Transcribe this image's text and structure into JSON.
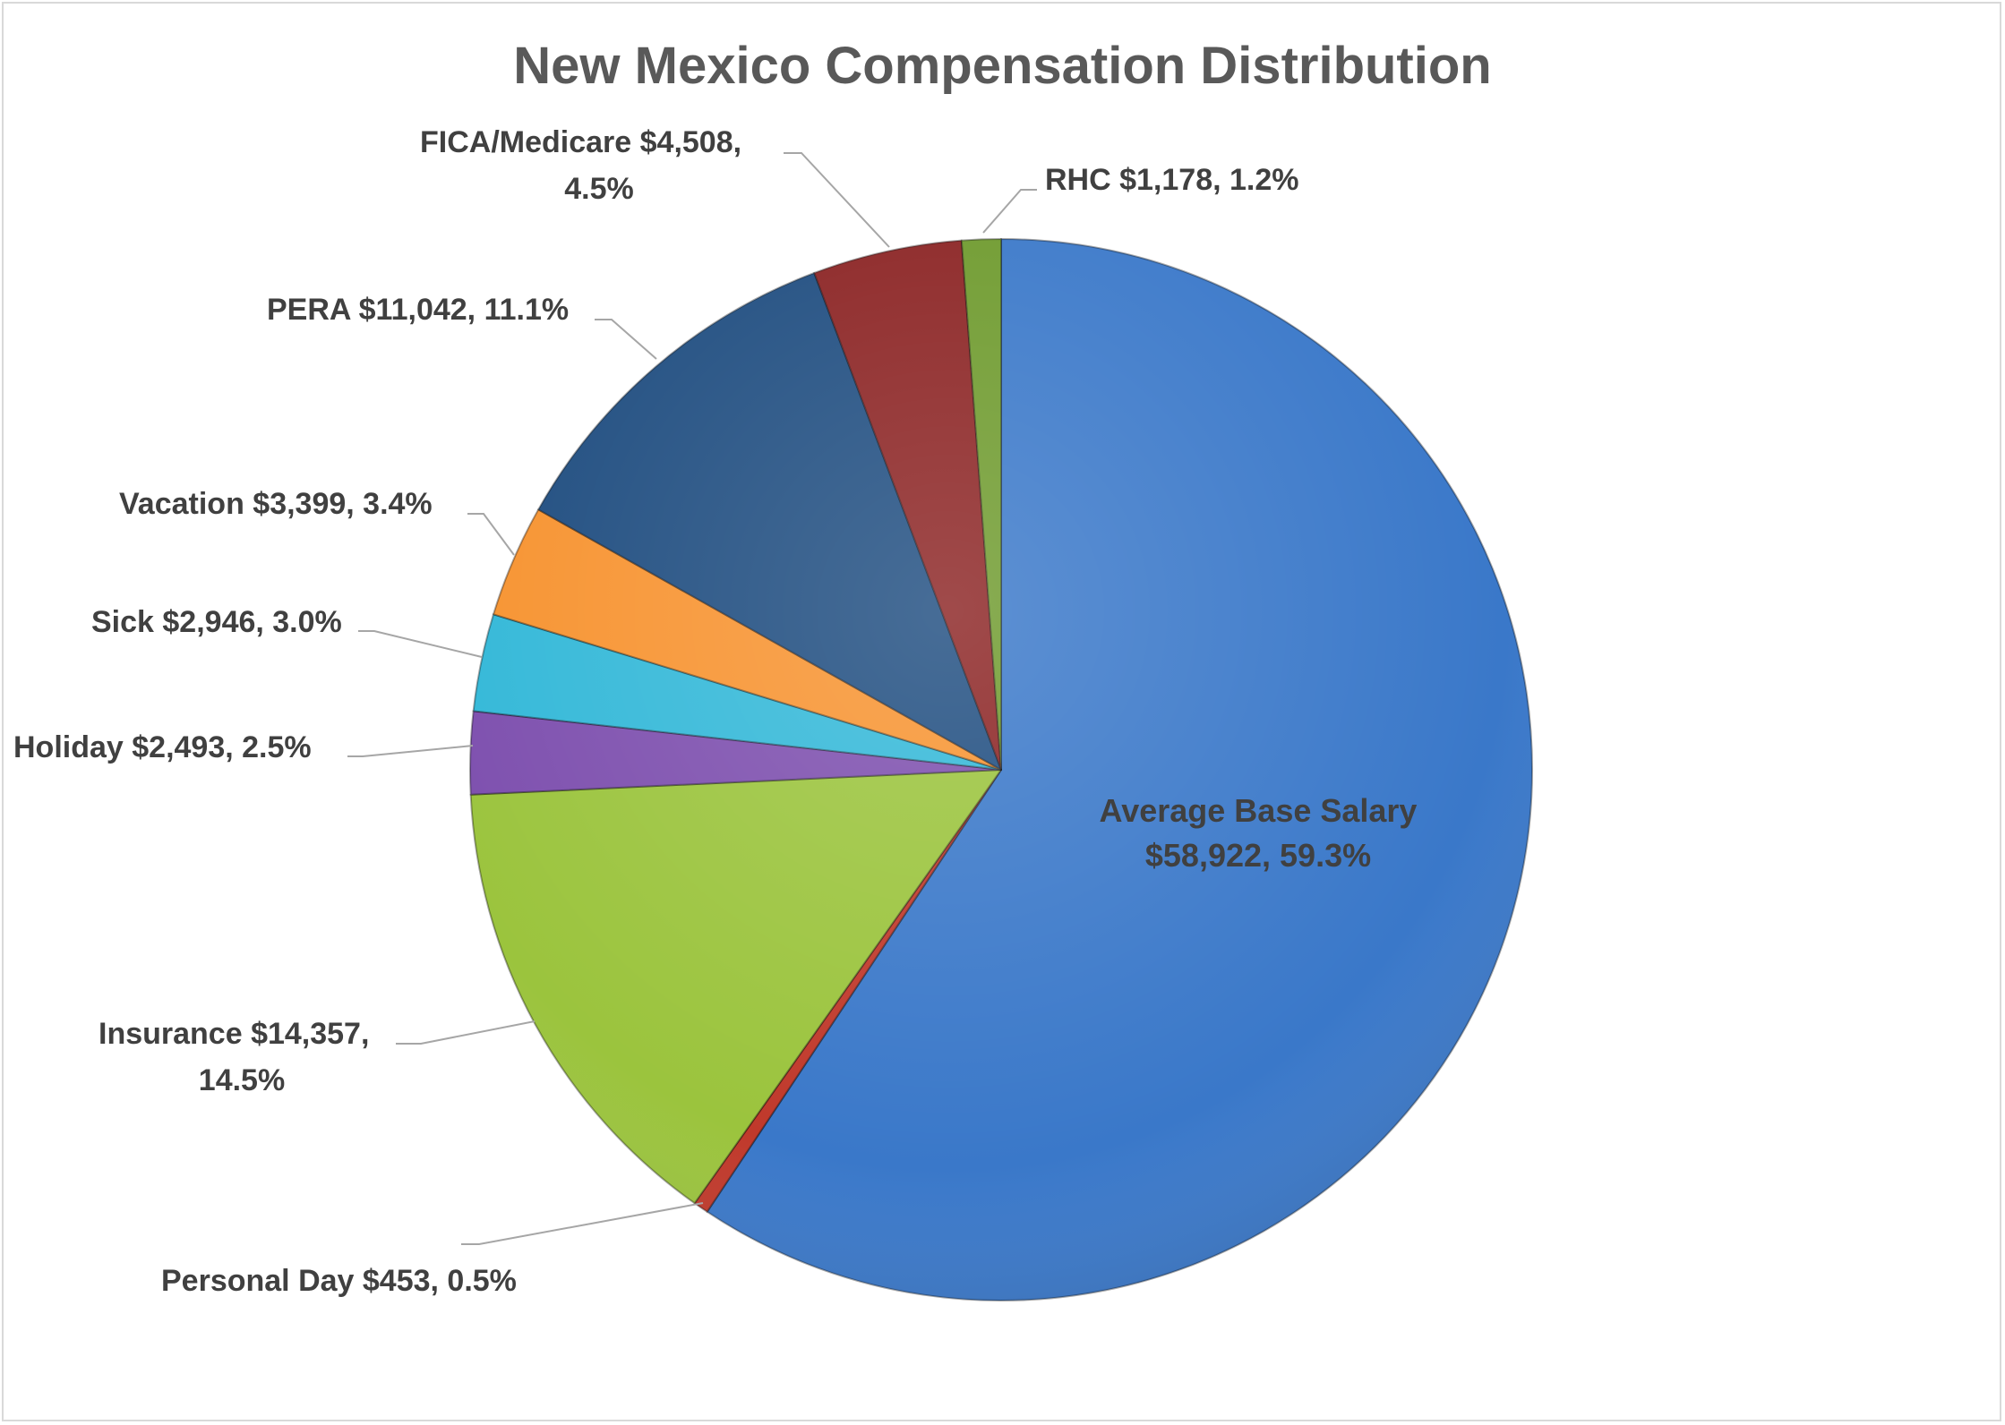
{
  "chart_data": {
    "type": "pie",
    "title": "New Mexico Compensation Distribution",
    "start_angle_deg": 0,
    "direction": "clockwise",
    "slices": [
      {
        "name": "Average Base Salary",
        "value": 58922,
        "value_label": "$58,922",
        "percent_label": "59.3%",
        "color": "#3a78c9"
      },
      {
        "name": "Personal Day",
        "value": 453,
        "value_label": "$453",
        "percent_label": "0.5%",
        "color": "#c0392b"
      },
      {
        "name": "Insurance",
        "value": 14357,
        "value_label": "$14,357",
        "percent_label": "14.5%",
        "color": "#9bc43d"
      },
      {
        "name": "Holiday",
        "value": 2493,
        "value_label": "$2,493",
        "percent_label": "2.5%",
        "color": "#7d4fae"
      },
      {
        "name": "Sick",
        "value": 2946,
        "value_label": "$2,946",
        "percent_label": "3.0%",
        "color": "#33b8d8"
      },
      {
        "name": "Vacation",
        "value": 3399,
        "value_label": "$3,399",
        "percent_label": "3.4%",
        "color": "#f79330"
      },
      {
        "name": "PERA",
        "value": 11042,
        "value_label": "$11,042",
        "percent_label": "11.1%",
        "color": "#1f4d80"
      },
      {
        "name": "FICA/Medicare",
        "value": 4508,
        "value_label": "$4,508",
        "percent_label": "4.5%",
        "color": "#8b2323"
      },
      {
        "name": "RHC",
        "value": 1178,
        "value_label": "$1,178",
        "percent_label": "1.2%",
        "color": "#6e9a2d"
      }
    ],
    "label_lines": [
      [
        "Average Base Salary",
        "$58,922, 59.3%"
      ],
      [
        "Personal Day $453, 0.5%"
      ],
      [
        "Insurance $14,357,",
        "14.5%"
      ],
      [
        "Holiday $2,493, 2.5%"
      ],
      [
        "Sick $2,946, 3.0%"
      ],
      [
        "Vacation $3,399, 3.4%"
      ],
      [
        "PERA $11,042, 11.1%"
      ],
      [
        "FICA/Medicare $4,508,",
        "4.5%"
      ],
      [
        "RHC $1,178, 1.2%"
      ]
    ]
  }
}
